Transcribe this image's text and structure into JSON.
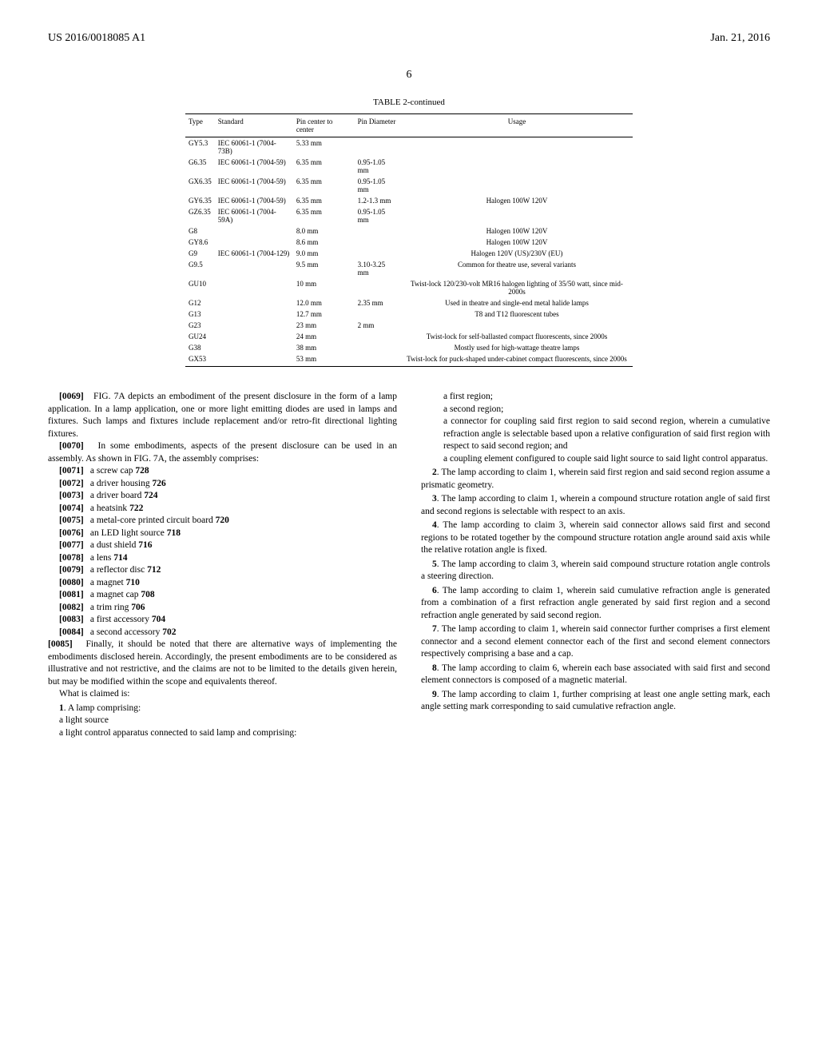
{
  "header": {
    "pub_number": "US 2016/0018085 A1",
    "pub_date": "Jan. 21, 2016",
    "page_number": "6"
  },
  "table": {
    "title": "TABLE 2-continued",
    "columns": [
      "Type",
      "Standard",
      "Pin center to center",
      "Pin Diameter",
      "Usage"
    ],
    "rows": [
      [
        "GY5.3",
        "IEC 60061-1 (7004-73B)",
        "5.33 mm",
        "",
        ""
      ],
      [
        "G6.35",
        "IEC 60061-1 (7004-59)",
        "6.35 mm",
        "0.95-1.05 mm",
        ""
      ],
      [
        "GX6.35",
        "IEC 60061-1 (7004-59)",
        "6.35 mm",
        "0.95-1.05 mm",
        ""
      ],
      [
        "GY6.35",
        "IEC 60061-1 (7004-59)",
        "6.35 mm",
        "1.2-1.3 mm",
        "Halogen 100W 120V"
      ],
      [
        "GZ6.35",
        "IEC 60061-1 (7004-59A)",
        "6.35 mm",
        "0.95-1.05 mm",
        ""
      ],
      [
        "G8",
        "",
        "8.0 mm",
        "",
        "Halogen 100W 120V"
      ],
      [
        "GY8.6",
        "",
        "8.6 mm",
        "",
        "Halogen 100W 120V"
      ],
      [
        "G9",
        "IEC 60061-1 (7004-129)",
        "9.0 mm",
        "",
        "Halogen 120V (US)/230V (EU)"
      ],
      [
        "G9.5",
        "",
        "9.5 mm",
        "3.10-3.25 mm",
        "Common for theatre use, several variants"
      ],
      [
        "GU10",
        "",
        "10 mm",
        "",
        "Twist-lock 120/230-volt MR16 halogen lighting of 35/50 watt, since mid-2000s"
      ],
      [
        "G12",
        "",
        "12.0 mm",
        "2.35 mm",
        "Used in theatre and single-end metal halide lamps"
      ],
      [
        "G13",
        "",
        "12.7 mm",
        "",
        "T8 and T12 fluorescent tubes"
      ],
      [
        "G23",
        "",
        "23 mm",
        "2 mm",
        ""
      ],
      [
        "GU24",
        "",
        "24 mm",
        "",
        "Twist-lock for self-ballasted compact fluorescents, since 2000s"
      ],
      [
        "G38",
        "",
        "38 mm",
        "",
        "Mostly used for high-wattage theatre lamps"
      ],
      [
        "GX53",
        "",
        "53 mm",
        "",
        "Twist-lock for puck-shaped under-cabinet compact fluorescents, since 2000s"
      ]
    ]
  },
  "left_col": {
    "p0069": "FIG. 7A depicts an embodiment of the present disclosure in the form of a lamp application. In a lamp application, one or more light emitting diodes are used in lamps and fixtures. Such lamps and fixtures include replacement and/or retro-fit directional lighting fixtures.",
    "p0070": "In some embodiments, aspects of the present disclosure can be used in an assembly. As shown in FIG. 7A, the assembly comprises:",
    "items": [
      {
        "num": "[0071]",
        "text": "a screw cap 728"
      },
      {
        "num": "[0072]",
        "text": "a driver housing 726"
      },
      {
        "num": "[0073]",
        "text": "a driver board 724"
      },
      {
        "num": "[0074]",
        "text": "a heatsink 722"
      },
      {
        "num": "[0075]",
        "text": "a metal-core printed circuit board 720"
      },
      {
        "num": "[0076]",
        "text": "an LED light source 718"
      },
      {
        "num": "[0077]",
        "text": "a dust shield 716"
      },
      {
        "num": "[0078]",
        "text": "a lens 714"
      },
      {
        "num": "[0079]",
        "text": "a reflector disc 712"
      },
      {
        "num": "[0080]",
        "text": "a magnet 710"
      },
      {
        "num": "[0081]",
        "text": "a magnet cap 708"
      },
      {
        "num": "[0082]",
        "text": "a trim ring 706"
      },
      {
        "num": "[0083]",
        "text": "a first accessory 704"
      },
      {
        "num": "[0084]",
        "text": "a second accessory 702"
      }
    ],
    "p0085": "Finally, it should be noted that there are alternative ways of implementing the embodiments disclosed herein. Accordingly, the present embodiments are to be considered as illustrative and not restrictive, and the claims are not to be limited to the details given herein, but may be modified within the scope and equivalents thereof.",
    "what_claimed": "What is claimed is:",
    "claim1_num": "1",
    "claim1_intro": ". A lamp comprising:",
    "claim1_lines": [
      "a light source",
      "a light control apparatus connected to said lamp and comprising:"
    ]
  },
  "right_col": {
    "claim1_cont": [
      "a first region;",
      "a second region;",
      "a connector for coupling said first region to said second region, wherein a cumulative refraction angle is selectable based upon a relative configuration of said first region with respect to said second region; and",
      "a coupling element configured to couple said light source to said light control apparatus."
    ],
    "claim2": ". The lamp according to claim 1, wherein said first region and said second region assume a prismatic geometry.",
    "claim3": ". The lamp according to claim 1, wherein a compound structure rotation angle of said first and second regions is selectable with respect to an axis.",
    "claim4": ". The lamp according to claim 3, wherein said connector allows said first and second regions to be rotated together by the compound structure rotation angle around said axis while the relative rotation angle is fixed.",
    "claim5": ". The lamp according to claim 3, wherein said compound structure rotation angle controls a steering direction.",
    "claim6": ". The lamp according to claim 1, wherein said cumulative refraction angle is generated from a combination of a first refraction angle generated by said first region and a second refraction angle generated by said second region.",
    "claim7": ". The lamp according to claim 1, wherein said connector further comprises a first element connector and a second element connector each of the first and second element connectors respectively comprising a base and a cap.",
    "claim8": ". The lamp according to claim 6, wherein each base associated with said first and second element connectors is composed of a magnetic material.",
    "claim9": ". The lamp according to claim 1, further comprising at least one angle setting mark, each angle setting mark corresponding to said cumulative refraction angle.",
    "nums": {
      "n2": "2",
      "n3": "3",
      "n4": "4",
      "n5": "5",
      "n6": "6",
      "n7": "7",
      "n8": "8",
      "n9": "9"
    }
  }
}
